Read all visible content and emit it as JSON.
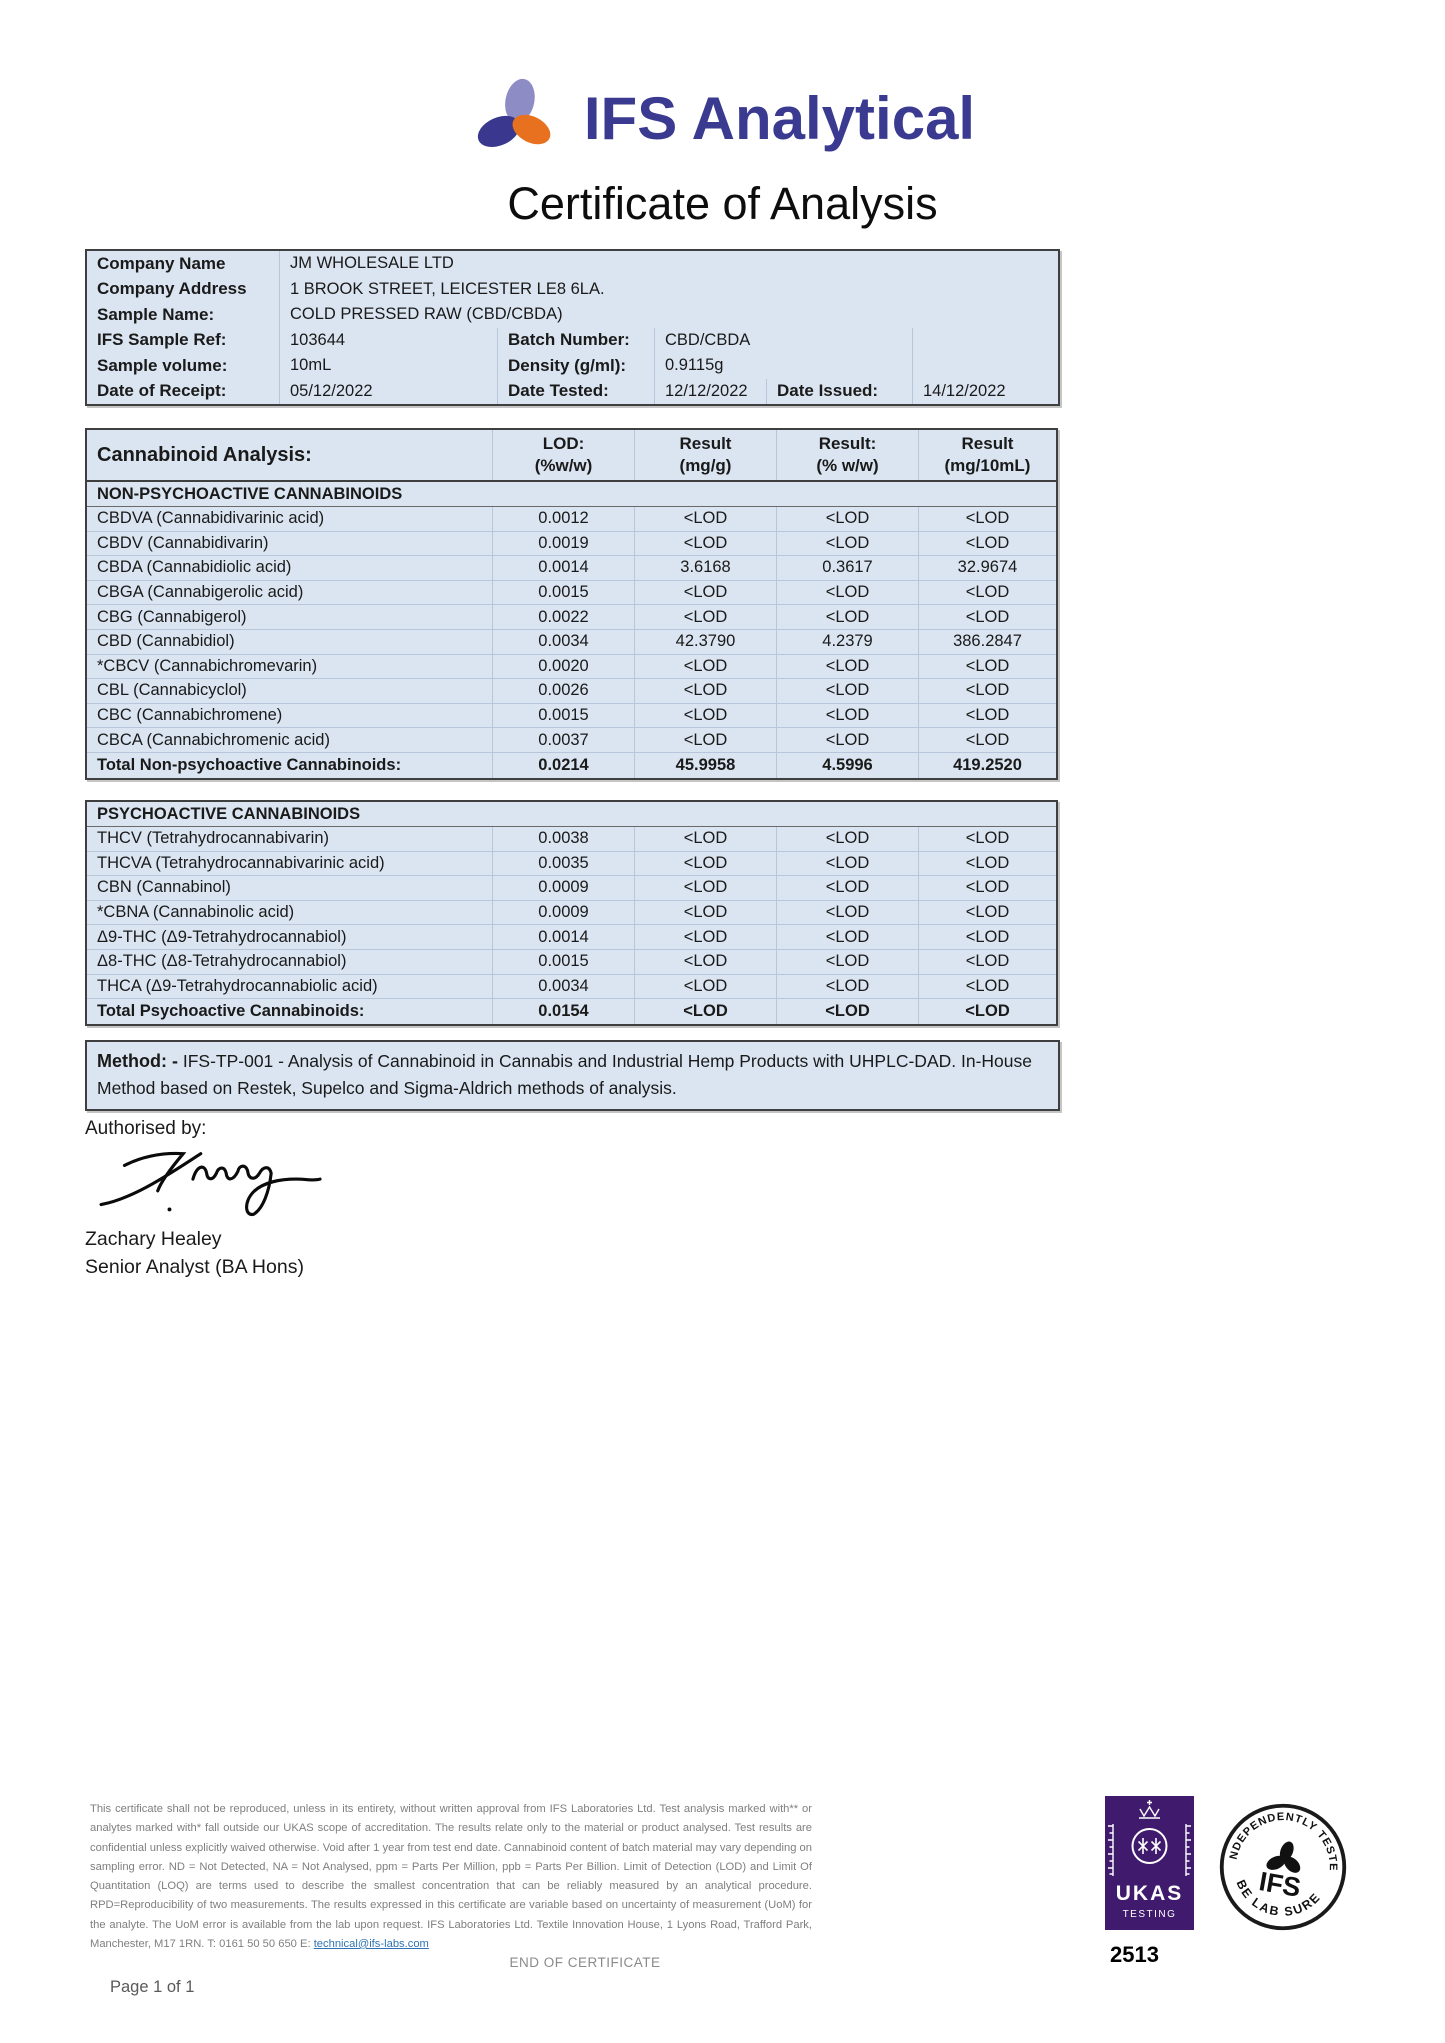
{
  "brand": {
    "name": "IFS Analytical",
    "colors": {
      "text": "#3a3a90",
      "leaf_top": "#8e8cc4",
      "leaf_left": "#39388e",
      "leaf_right": "#e8711f"
    }
  },
  "title": "Certificate of Analysis",
  "sample_info": {
    "company_name_label": "Company Name",
    "company_name": "JM WHOLESALE LTD",
    "company_address_label": "Company Address",
    "company_address": "1 BROOK STREET, LEICESTER LE8 6LA.",
    "sample_name_label": "Sample Name:",
    "sample_name": "COLD PRESSED RAW (CBD/CBDA)",
    "ifs_sample_ref_label": "IFS Sample Ref:",
    "ifs_sample_ref": "103644",
    "batch_number_label": "Batch Number:",
    "batch_number": "CBD/CBDA",
    "sample_volume_label": "Sample volume:",
    "sample_volume": "10mL",
    "density_label": "Density (g/ml):",
    "density": "0.9115g",
    "date_receipt_label": "Date of Receipt:",
    "date_receipt": "05/12/2022",
    "date_tested_label": "Date Tested:",
    "date_tested": "12/12/2022",
    "date_issued_label": "Date Issued:",
    "date_issued": "14/12/2022"
  },
  "analysis_table": {
    "title": "Cannabinoid Analysis:",
    "columns": [
      {
        "l1": "LOD:",
        "l2": "(%w/w)"
      },
      {
        "l1": "Result",
        "l2": "(mg/g)"
      },
      {
        "l1": "Result:",
        "l2": "(% w/w)"
      },
      {
        "l1": "Result",
        "l2": "(mg/10mL)"
      }
    ],
    "sections": [
      {
        "header": "NON-PSYCHOACTIVE CANNABINOIDS",
        "rows": [
          [
            "CBDVA (Cannabidivarinic acid)",
            "0.0012",
            "<LOD",
            "<LOD",
            "<LOD"
          ],
          [
            "CBDV (Cannabidivarin)",
            "0.0019",
            "<LOD",
            "<LOD",
            "<LOD"
          ],
          [
            "CBDA (Cannabidiolic acid)",
            "0.0014",
            "3.6168",
            "0.3617",
            "32.9674"
          ],
          [
            "CBGA (Cannabigerolic acid)",
            "0.0015",
            "<LOD",
            "<LOD",
            "<LOD"
          ],
          [
            "CBG (Cannabigerol)",
            "0.0022",
            "<LOD",
            "<LOD",
            "<LOD"
          ],
          [
            "CBD (Cannabidiol)",
            "0.0034",
            "42.3790",
            "4.2379",
            "386.2847"
          ],
          [
            "*CBCV (Cannabichromevarin)",
            "0.0020",
            "<LOD",
            "<LOD",
            "<LOD"
          ],
          [
            "CBL (Cannabicyclol)",
            "0.0026",
            "<LOD",
            "<LOD",
            "<LOD"
          ],
          [
            "CBC (Cannabichromene)",
            "0.0015",
            "<LOD",
            "<LOD",
            "<LOD"
          ],
          [
            "CBCA (Cannabichromenic acid)",
            "0.0037",
            "<LOD",
            "<LOD",
            "<LOD"
          ]
        ],
        "total": [
          "Total Non-psychoactive Cannabinoids:",
          "0.0214",
          "45.9958",
          "4.5996",
          "419.2520"
        ]
      },
      {
        "header": "PSYCHOACTIVE CANNABINOIDS",
        "rows": [
          [
            "THCV (Tetrahydrocannabivarin)",
            "0.0038",
            "<LOD",
            "<LOD",
            "<LOD"
          ],
          [
            "THCVA (Tetrahydrocannabivarinic acid)",
            "0.0035",
            "<LOD",
            "<LOD",
            "<LOD"
          ],
          [
            "CBN (Cannabinol)",
            "0.0009",
            "<LOD",
            "<LOD",
            "<LOD"
          ],
          [
            "*CBNA (Cannabinolic acid)",
            "0.0009",
            "<LOD",
            "<LOD",
            "<LOD"
          ],
          [
            "Δ9-THC (Δ9-Tetrahydrocannabiol)",
            "0.0014",
            "<LOD",
            "<LOD",
            "<LOD"
          ],
          [
            "Δ8-THC (Δ8-Tetrahydrocannabiol)",
            "0.0015",
            "<LOD",
            "<LOD",
            "<LOD"
          ],
          [
            "THCA (Δ9-Tetrahydrocannabiolic acid)",
            "0.0034",
            "<LOD",
            "<LOD",
            "<LOD"
          ]
        ],
        "total": [
          "Total Psychoactive Cannabinoids:",
          "0.0154",
          "<LOD",
          "<LOD",
          "<LOD"
        ]
      }
    ]
  },
  "method": {
    "label": "Method: -",
    "text": " IFS-TP-001 - Analysis of Cannabinoid in Cannabis and Industrial Hemp Products with UHPLC-DAD. In-House Method based on Restek, Supelco and Sigma-Aldrich methods of analysis."
  },
  "authorisation": {
    "label": "Authorised by:",
    "name": "Zachary Healey",
    "role": "Senior Analyst (BA Hons)"
  },
  "footer": {
    "disclaimer": "This certificate shall not be reproduced, unless in its entirety, without written approval from IFS Laboratories Ltd. Test analysis marked with** or analytes marked with* fall outside our UKAS scope of accreditation.  The results relate only to the material or product analysed. Test results are confidential unless explicitly waived otherwise. Void after 1 year from test end date. Cannabinoid content of batch material may vary depending on sampling error. ND = Not Detected, NA = Not Analysed, ppm = Parts Per Million, ppb = Parts Per Billion. Limit of Detection (LOD) and Limit Of Quantitation (LOQ) are terms used to describe the smallest concentration that can be reliably measured by an analytical procedure. RPD=Reproducibility of two measurements. The results expressed in this certificate are variable based on uncertainty of measurement (UoM) for the analyte. The UoM error is available from the lab upon request. IFS Laboratories Ltd. Textile Innovation House, 1 Lyons Road, Trafford Park, Manchester, M17 1RN. T: 0161 50 50 650 E: ",
    "email_link": "technical@ifs-labs.com",
    "end_text": "END OF CERTIFICATE",
    "page_text": "Page 1 of 1",
    "ukas": {
      "name": "UKAS",
      "sub": "TESTING",
      "number": "2513"
    },
    "stamp": {
      "top": "INDEPENDENTLY TESTED",
      "center": "IFS",
      "bottom": "BE LAB SURE"
    }
  }
}
